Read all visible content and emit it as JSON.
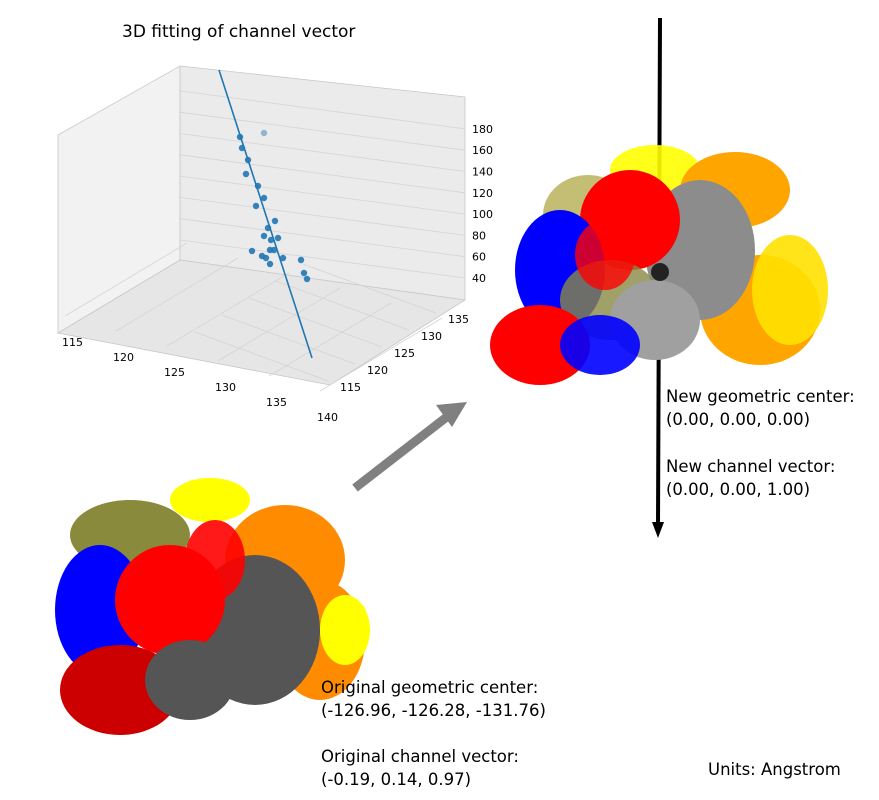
{
  "chart_data": {
    "type": "scatter",
    "title": "3D fitting of channel vector",
    "x_ticks": [
      "115",
      "120",
      "125",
      "130",
      "135",
      "140"
    ],
    "y_ticks": [
      "115",
      "120",
      "125",
      "130",
      "135"
    ],
    "z_ticks": [
      "40",
      "60",
      "80",
      "100",
      "120",
      "140",
      "160",
      "180"
    ],
    "grid": true,
    "series": [
      {
        "values_note": "",
        "points": []
      }
    ],
    "colors": {
      "points": "#1f77b4",
      "line": "#1f77b4",
      "pane": "#f2f2f2",
      "grid": "#d9d9d9"
    }
  },
  "labels": {
    "new_center_title": "New geometric center:",
    "new_center_value": "(0.00, 0.00, 0.00)",
    "new_vector_title": "New channel vector:",
    "new_vector_value": "(0.00, 0.00, 1.00)",
    "orig_center_title": "Original geometric center:",
    "orig_center_value": "(-126.96, -126.28, -131.76)",
    "orig_vector_title": "Original channel vector:",
    "orig_vector_value": "(-0.19, 0.14, 0.97)",
    "units": "Units: Angstrom"
  },
  "protein_colors": [
    "#0000ff",
    "#ff0000",
    "#808080",
    "#ffa500",
    "#ffff00",
    "#9a9a3c"
  ]
}
